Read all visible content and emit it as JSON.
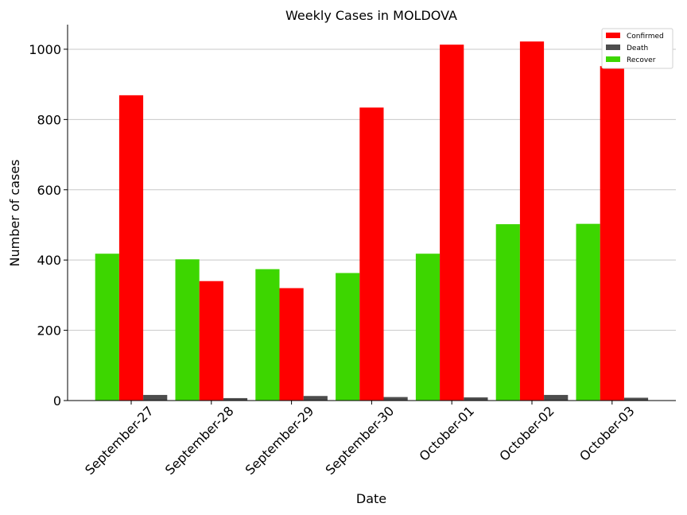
{
  "chart_data": {
    "type": "bar",
    "title": "Weekly Cases in MOLDOVA",
    "xlabel": "Date",
    "ylabel": "Number of cases",
    "categories": [
      "September-27",
      "September-28",
      "September-29",
      "September-30",
      "October-01",
      "October-02",
      "October-03"
    ],
    "series": [
      {
        "name": "Recover",
        "color": "#3dd600",
        "values": [
          418,
          402,
          374,
          363,
          418,
          502,
          503
        ]
      },
      {
        "name": "Confirmed",
        "color": "#ff0000",
        "values": [
          869,
          340,
          320,
          834,
          1013,
          1022,
          952
        ]
      },
      {
        "name": "Death",
        "color": "#4d4d4d",
        "values": [
          16,
          7,
          13,
          10,
          9,
          16,
          8
        ]
      }
    ],
    "legend_order": [
      "Confirmed",
      "Death",
      "Recover"
    ],
    "ylim": [
      0,
      1070
    ],
    "yticks": [
      0,
      200,
      400,
      600,
      800,
      1000
    ],
    "grid": "horizontal",
    "legend_position": "top-right"
  }
}
